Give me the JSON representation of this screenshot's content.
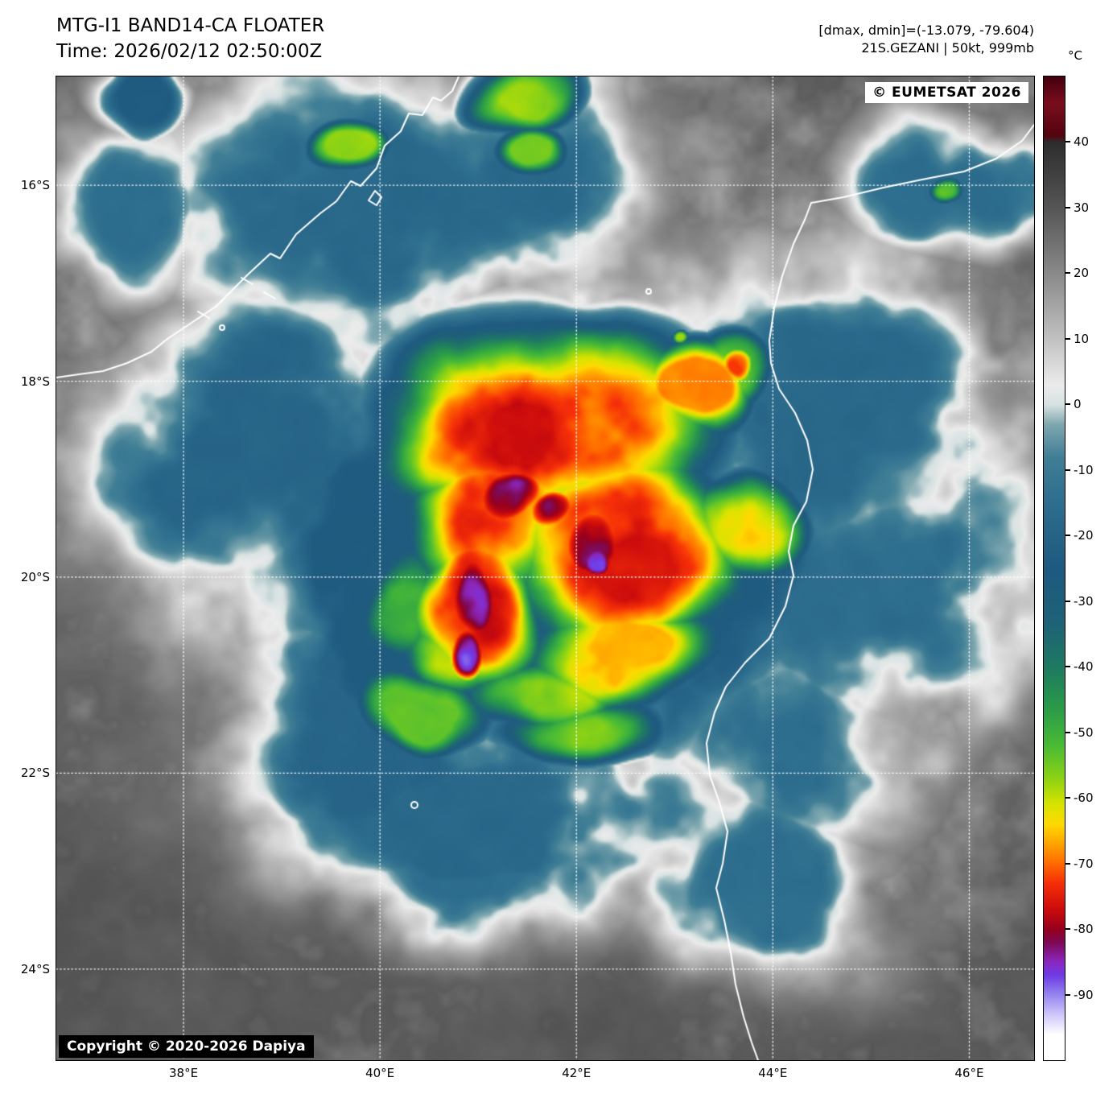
{
  "header": {
    "title": "MTG-I1 BAND14-CA FLOATER",
    "time_line": "Time: 2026/02/12 02:50:00Z",
    "dminmax_line": "[dmax, dmin]=(-13.079, -79.604)",
    "storm_line": "21S.GEZANI | 50kt, 999mb"
  },
  "map": {
    "watermark": "© EUMETSAT 2026",
    "copyright": "Copyright © 2020-2026 Dapiya",
    "extent": {
      "west": 36.705,
      "east": 46.66,
      "north": -14.89,
      "south": -24.93
    },
    "lat_ticks": [
      {
        "lat": -16,
        "label": "16°S"
      },
      {
        "lat": -18,
        "label": "18°S"
      },
      {
        "lat": -20,
        "label": "20°S"
      },
      {
        "lat": -22,
        "label": "22°S"
      },
      {
        "lat": -24,
        "label": "24°S"
      }
    ],
    "lon_ticks": [
      {
        "lon": 38,
        "label": "38°E"
      },
      {
        "lon": 40,
        "label": "40°E"
      },
      {
        "lon": 42,
        "label": "42°E"
      },
      {
        "lon": 44,
        "label": "44°E"
      },
      {
        "lon": 46,
        "label": "46°E"
      }
    ]
  },
  "colorbar": {
    "unit": "°C",
    "tmax": 50,
    "tmin": -100,
    "ticks": [
      {
        "v": 40,
        "label": "40"
      },
      {
        "v": 30,
        "label": "30"
      },
      {
        "v": 20,
        "label": "20"
      },
      {
        "v": 10,
        "label": "10"
      },
      {
        "v": 0,
        "label": "0"
      },
      {
        "v": -10,
        "label": "-10"
      },
      {
        "v": -20,
        "label": "-20"
      },
      {
        "v": -30,
        "label": "-30"
      },
      {
        "v": -40,
        "label": "-40"
      },
      {
        "v": -50,
        "label": "-50"
      },
      {
        "v": -60,
        "label": "-60"
      },
      {
        "v": -70,
        "label": "-70"
      },
      {
        "v": -80,
        "label": "-80"
      },
      {
        "v": -90,
        "label": "-90"
      }
    ],
    "palette": [
      [
        50,
        "#45000e"
      ],
      [
        46,
        "#7a0e1e"
      ],
      [
        41,
        "#54040f"
      ],
      [
        40,
        "#2e2e2e"
      ],
      [
        30,
        "#565656"
      ],
      [
        20,
        "#8a8a8a"
      ],
      [
        10,
        "#c2c2c2"
      ],
      [
        3,
        "#ececec"
      ],
      [
        0,
        "#d8e2e2"
      ],
      [
        -3,
        "#7fa8b0"
      ],
      [
        -8,
        "#417f96"
      ],
      [
        -15,
        "#2e6e8e"
      ],
      [
        -25,
        "#1f5a80"
      ],
      [
        -33,
        "#1e6278"
      ],
      [
        -40,
        "#1f7a62"
      ],
      [
        -46,
        "#2a9a4a"
      ],
      [
        -52,
        "#49bb35"
      ],
      [
        -57,
        "#8ed314"
      ],
      [
        -61,
        "#d8e400"
      ],
      [
        -64,
        "#ffd900"
      ],
      [
        -67,
        "#ffa400"
      ],
      [
        -70,
        "#ff6a00"
      ],
      [
        -73,
        "#f52f08"
      ],
      [
        -77,
        "#cc0c0c"
      ],
      [
        -80,
        "#96001e"
      ],
      [
        -82,
        "#7e0a56"
      ],
      [
        -85,
        "#8c28c0"
      ],
      [
        -87,
        "#6e3ce6"
      ],
      [
        -90,
        "#9686f0"
      ],
      [
        -93,
        "#cfc8fa"
      ],
      [
        -96,
        "#ffffff"
      ],
      [
        -100,
        "#ffffff"
      ]
    ]
  }
}
